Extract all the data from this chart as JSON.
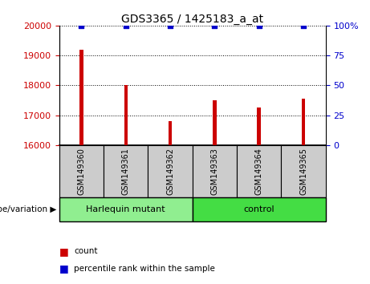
{
  "title": "GDS3365 / 1425183_a_at",
  "categories": [
    "GSM149360",
    "GSM149361",
    "GSM149362",
    "GSM149363",
    "GSM149364",
    "GSM149365"
  ],
  "bar_values": [
    19200,
    18000,
    16800,
    17500,
    17250,
    17550
  ],
  "percentile_values": [
    100,
    100,
    100,
    100,
    100,
    100
  ],
  "bar_color": "#cc0000",
  "percentile_color": "#0000cc",
  "ylim_left": [
    16000,
    20000
  ],
  "ylim_right": [
    0,
    100
  ],
  "yticks_left": [
    16000,
    17000,
    18000,
    19000,
    20000
  ],
  "yticks_right": [
    0,
    25,
    50,
    75,
    100
  ],
  "groups": [
    {
      "label": "Harlequin mutant",
      "start": 0,
      "end": 3,
      "color": "#90ee90"
    },
    {
      "label": "control",
      "start": 3,
      "end": 6,
      "color": "#44dd44"
    }
  ],
  "group_label_prefix": "genotype/variation ▶",
  "legend_count_label": "count",
  "legend_percentile_label": "percentile rank within the sample",
  "background_color": "#ffffff",
  "plot_bg_color": "#ffffff",
  "tick_label_color_left": "#cc0000",
  "tick_label_color_right": "#0000cc",
  "grid_style": "dotted",
  "grid_color": "#000000",
  "bar_width": 0.08,
  "xlabel_rotation": 90,
  "title_color": "#000000",
  "title_fontsize": 10,
  "xtick_box_color": "#cccccc",
  "xtick_fontsize": 7,
  "legend_fontsize": 7.5
}
